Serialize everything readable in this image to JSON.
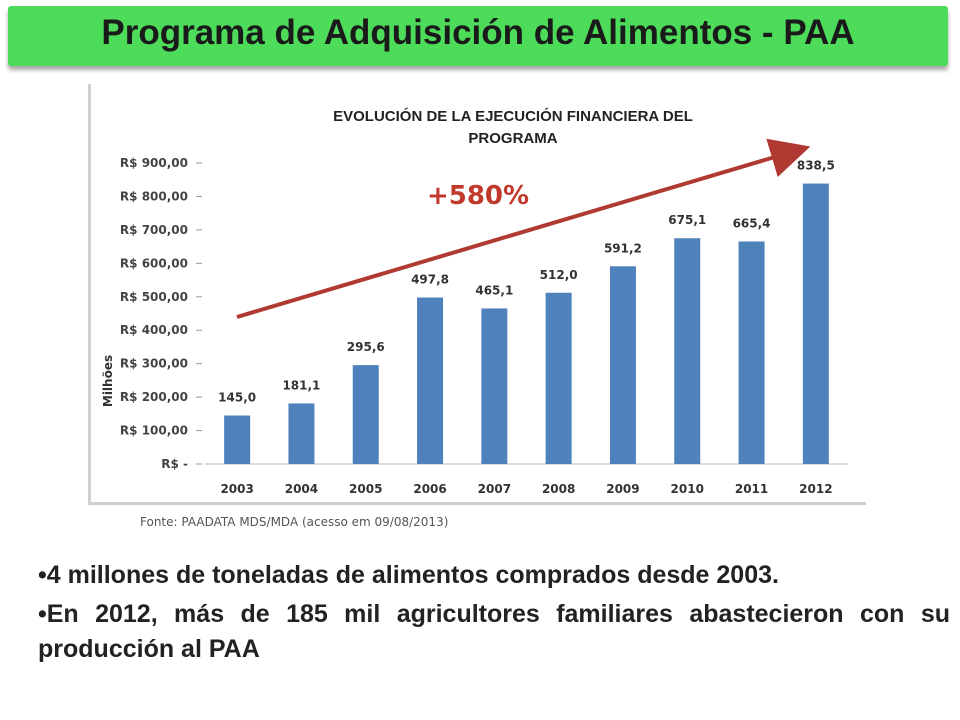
{
  "header": {
    "title": "Programa de Adquisición de Alimentos - PAA"
  },
  "chart_data": {
    "type": "bar",
    "title_line1": "EVOLUCIÓN DE LA EJECUCIÓN FINANCIERA DEL",
    "title_line2": "PROGRAMA",
    "ylabel": "Milhões",
    "categories": [
      "2003",
      "2004",
      "2005",
      "2006",
      "2007",
      "2008",
      "2009",
      "2010",
      "2011",
      "2012"
    ],
    "values": [
      145.0,
      181.1,
      295.6,
      497.8,
      465.1,
      512.0,
      591.2,
      675.1,
      665.4,
      838.5
    ],
    "data_labels": [
      "145,0",
      "181,1",
      "295,6",
      "497,8",
      "465,1",
      "512,0",
      "591,2",
      "675,1",
      "665,4",
      "838,5"
    ],
    "ytick_labels": [
      "R$ -",
      "R$ 100,00",
      "R$ 200,00",
      "R$ 300,00",
      "R$ 400,00",
      "R$ 500,00",
      "R$ 600,00",
      "R$ 700,00",
      "R$ 800,00",
      "R$ 900,00"
    ],
    "ylim": [
      0,
      900
    ],
    "bar_color": "#4f81bd",
    "arrow_color": "#b03a32",
    "growth_annotation": "+580%",
    "source_note": "Fonte: PAADATA MDS/MDA (acesso em 09/08/2013)",
    "grid": false
  },
  "bullets": [
    "•4 millones de toneladas de alimentos comprados desde 2003.",
    "•En 2012, más de 185 mil agricultores familiares abastecieron con su producción al PAA"
  ]
}
